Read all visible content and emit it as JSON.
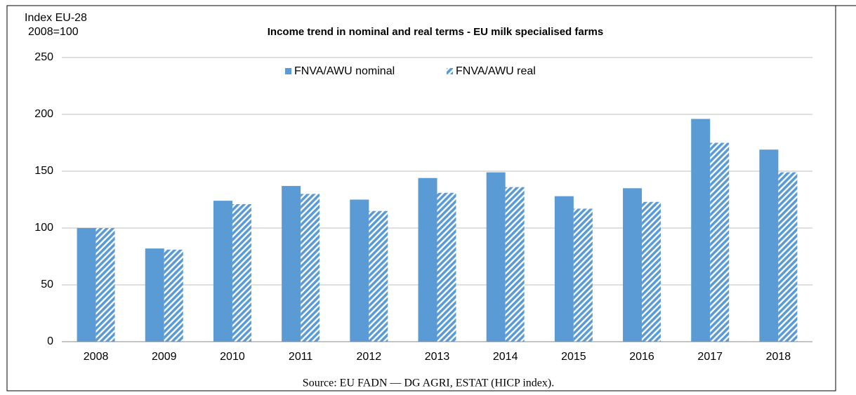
{
  "chart_data": {
    "type": "bar",
    "title": "Income trend in nominal and real terms - EU milk specialised farms",
    "y_label": [
      "Index EU-28",
      "2008=100"
    ],
    "source": "Source: EU FADN — DG AGRI, ESTAT (HICP index).",
    "categories": [
      "2008",
      "2009",
      "2010",
      "2011",
      "2012",
      "2013",
      "2014",
      "2015",
      "2016",
      "2017",
      "2018"
    ],
    "series": [
      {
        "name": "FNVA/AWU nominal",
        "color": "#5b9bd5",
        "fill": "solid",
        "values": [
          100,
          82,
          124,
          137,
          125,
          144,
          149,
          128,
          135,
          196,
          169
        ]
      },
      {
        "name": "FNVA/AWU real",
        "color": "#5b9bd5",
        "fill": "hatch",
        "values": [
          100,
          81,
          121,
          130,
          115,
          131,
          136,
          117,
          123,
          175,
          149
        ]
      }
    ],
    "ylim": [
      0,
      250
    ],
    "yticks": [
      0,
      50,
      100,
      150,
      200,
      250
    ],
    "grid": true,
    "legend": "top"
  }
}
